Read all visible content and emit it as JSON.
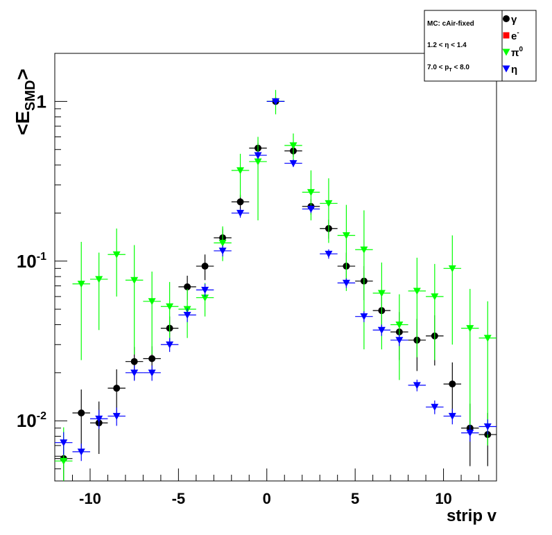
{
  "chart_data": {
    "type": "scatter",
    "title": "",
    "xlabel": "strip v",
    "ylabel_main": "<E",
    "ylabel_sub": "SMD",
    "ylabel_end": ">",
    "xlim": [
      -12,
      13
    ],
    "ylim": [
      0.0042,
      2.0
    ],
    "y_scale": "log",
    "grid": false,
    "legend_position": "top-right",
    "x_ticks": [
      {
        "value": -10,
        "label": "-10"
      },
      {
        "value": -5,
        "label": "-5"
      },
      {
        "value": 0,
        "label": "0"
      },
      {
        "value": 5,
        "label": "5"
      },
      {
        "value": 10,
        "label": "10"
      }
    ],
    "y_ticks": [
      {
        "value": 0.01,
        "base": "10",
        "exp": "-2"
      },
      {
        "value": 0.1,
        "base": "10",
        "exp": "-1"
      },
      {
        "value": 1,
        "base": "1",
        "exp": ""
      }
    ],
    "info_box": {
      "line1": "MC: cAir-fixed",
      "line2": "1.2 < η < 1.4",
      "line3_a": "7.0 < p",
      "line3_sub": "T",
      "line3_b": " < 8.0"
    },
    "series": [
      {
        "name": "γ",
        "legend_base": "",
        "legend_sup": "γ",
        "color": "#000000",
        "marker": "circle",
        "x": [
          -11.5,
          -10.5,
          -9.5,
          -8.5,
          -7.5,
          -6.5,
          -5.5,
          -4.5,
          -3.5,
          -2.5,
          -1.5,
          -0.5,
          0.5,
          1.5,
          2.5,
          3.5,
          4.5,
          5.5,
          6.5,
          7.5,
          8.5,
          9.5,
          10.5,
          11.5,
          12.5
        ],
        "y": [
          0.0058,
          0.0112,
          0.0097,
          0.016,
          0.0235,
          0.0245,
          0.038,
          0.069,
          0.093,
          0.14,
          0.235,
          0.51,
          1.0,
          0.49,
          0.22,
          0.16,
          0.093,
          0.075,
          0.049,
          0.036,
          0.032,
          0.034,
          0.017,
          0.009,
          0.0082
        ],
        "err_low": [
          0.0018,
          0.0045,
          0.0035,
          0.005,
          0.0055,
          0.0048,
          0.007,
          0.012,
          0.017,
          0.02,
          0.025,
          0.04,
          0.04,
          0.04,
          0.025,
          0.022,
          0.02,
          0.018,
          0.013,
          0.012,
          0.0115,
          0.0118,
          0.0062,
          0.0038,
          0.003
        ],
        "err_high": [
          0.0018,
          0.0045,
          0.0035,
          0.005,
          0.0055,
          0.0048,
          0.007,
          0.012,
          0.017,
          0.02,
          0.025,
          0.04,
          0.04,
          0.04,
          0.025,
          0.022,
          0.02,
          0.018,
          0.013,
          0.012,
          0.0115,
          0.0118,
          0.0062,
          0.0038,
          0.003
        ]
      },
      {
        "name": "e-",
        "legend_base": "e",
        "legend_sup": "-",
        "color": "#ff0000",
        "marker": "square",
        "x": [],
        "y": [],
        "err_low": [],
        "err_high": []
      },
      {
        "name": "π0",
        "legend_base": "π",
        "legend_sup": "0",
        "color": "#00ff00",
        "marker": "triangle-down",
        "x": [
          -11.5,
          -10.5,
          -9.5,
          -8.5,
          -7.5,
          -6.5,
          -5.5,
          -4.5,
          -3.5,
          -2.5,
          -1.5,
          -0.5,
          0.5,
          1.5,
          2.5,
          3.5,
          4.5,
          5.5,
          6.5,
          7.5,
          8.5,
          9.5,
          10.5,
          11.5,
          12.5
        ],
        "y": [
          0.0056,
          0.072,
          0.077,
          0.11,
          0.076,
          0.056,
          0.052,
          0.05,
          0.059,
          0.13,
          0.37,
          0.42,
          1.0,
          0.53,
          0.27,
          0.23,
          0.145,
          0.118,
          0.063,
          0.04,
          0.065,
          0.06,
          0.09,
          0.038,
          0.033
        ],
        "err_low": [
          0.0018,
          0.048,
          0.04,
          0.05,
          0.05,
          0.03,
          0.022,
          0.017,
          0.014,
          0.03,
          0.12,
          0.24,
          0.17,
          0.12,
          0.09,
          0.1,
          0.08,
          0.09,
          0.035,
          0.022,
          0.04,
          0.036,
          0.06,
          0.029,
          0.026
        ],
        "err_high": [
          0.0035,
          0.06,
          0.036,
          0.05,
          0.05,
          0.03,
          0.022,
          0.017,
          0.014,
          0.035,
          0.1,
          0.18,
          0.18,
          0.1,
          0.1,
          0.1,
          0.08,
          0.09,
          0.035,
          0.022,
          0.04,
          0.036,
          0.055,
          0.029,
          0.023
        ]
      },
      {
        "name": "η",
        "legend_base": "",
        "legend_sup": "η",
        "color": "#0000ff",
        "marker": "triangle-down",
        "x": [
          -11.5,
          -10.5,
          -9.5,
          -8.5,
          -7.5,
          -6.5,
          -5.5,
          -4.5,
          -3.5,
          -2.5,
          -1.5,
          -0.5,
          0.5,
          1.5,
          2.5,
          3.5,
          4.5,
          5.5,
          6.5,
          7.5,
          8.5,
          9.5,
          10.5,
          11.5,
          12.5
        ],
        "y": [
          0.0073,
          0.0064,
          0.0103,
          0.0107,
          0.02,
          0.02,
          0.03,
          0.046,
          0.066,
          0.116,
          0.2,
          0.46,
          1.0,
          0.41,
          0.212,
          0.111,
          0.073,
          0.045,
          0.037,
          0.032,
          0.0167,
          0.0122,
          0.0107,
          0.0084,
          0.0092
        ],
        "err_low": [
          0.0012,
          0.0008,
          0.0014,
          0.0014,
          0.0022,
          0.0022,
          0.003,
          0.0045,
          0.006,
          0.009,
          0.013,
          0.025,
          0.03,
          0.022,
          0.012,
          0.0075,
          0.005,
          0.0035,
          0.003,
          0.0026,
          0.0014,
          0.0012,
          0.0012,
          0.001,
          0.001
        ],
        "err_high": [
          0.0012,
          0.0008,
          0.0014,
          0.0014,
          0.0022,
          0.0022,
          0.003,
          0.0045,
          0.006,
          0.009,
          0.013,
          0.025,
          0.03,
          0.022,
          0.012,
          0.0075,
          0.005,
          0.0035,
          0.003,
          0.0026,
          0.0014,
          0.0012,
          0.0012,
          0.001,
          0.001
        ]
      }
    ]
  }
}
